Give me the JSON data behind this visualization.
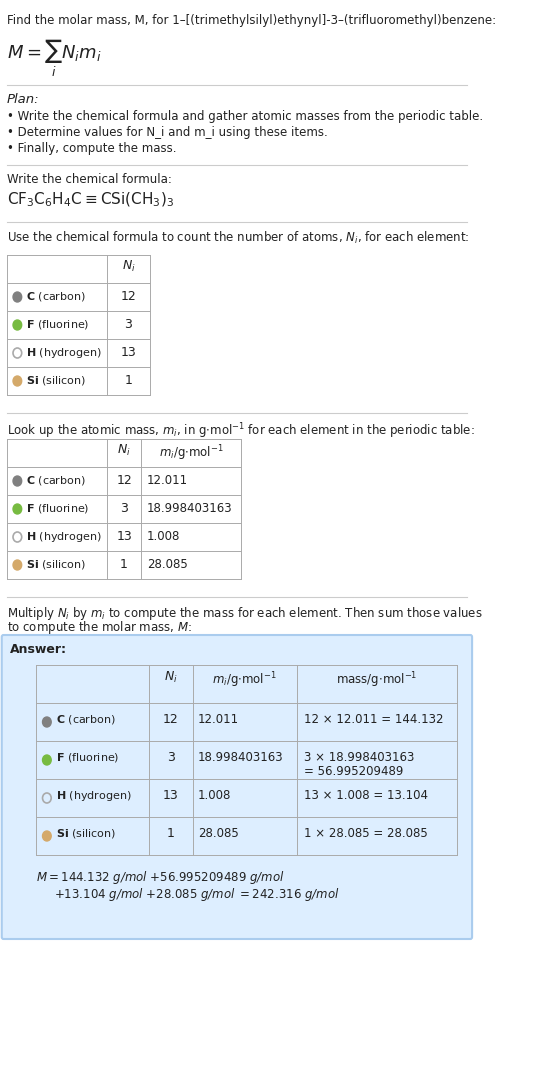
{
  "title_line": "Find the molar mass, M, for 1–[(trimethylsilyl)ethynyl]-3–(trifluoromethyl)benzene:",
  "formula_display": "M = Σ N_i m_i",
  "plan_header": "Plan:",
  "plan_bullets": [
    "Write the chemical formula and gather atomic masses from the periodic table.",
    "Determine values for N_i and m_i using these items.",
    "Finally, compute the mass."
  ],
  "formula_section_header": "Write the chemical formula:",
  "chemical_formula": "CF₃C₆H₄C≡CSi(CH₃)₃",
  "count_section_header": "Use the chemical formula to count the number of atoms, N_i, for each element:",
  "elements": [
    "C (carbon)",
    "F (fluorine)",
    "H (hydrogen)",
    "Si (silicon)"
  ],
  "element_symbols": [
    "C",
    "F",
    "H",
    "Si"
  ],
  "element_names": [
    "carbon",
    "fluorine",
    "hydrogen",
    "silicon"
  ],
  "dot_colors": [
    "#808080",
    "#77bb41",
    "none",
    "#d4a96a"
  ],
  "dot_filled": [
    true,
    true,
    false,
    true
  ],
  "ni_values": [
    12,
    3,
    13,
    1
  ],
  "mi_values": [
    "12.011",
    "18.998403163",
    "1.008",
    "28.085"
  ],
  "mass_values": [
    "12 × 12.011 = 144.132",
    "3 × 18.998403163\n= 56.995209489",
    "13 × 1.008 = 13.104",
    "1 × 28.085 = 28.085"
  ],
  "answer_box_color": "#ddeeff",
  "answer_box_border": "#aaccee",
  "final_mass_line1": "M = 144.132 g/mol + 56.995209489 g/mol",
  "final_mass_line2": "+ 13.104 g/mol + 28.085 g/mol = 242.316 g/mol",
  "bg_color": "#ffffff",
  "separator_color": "#cccccc",
  "text_color": "#222222",
  "table_border_color": "#aaaaaa"
}
